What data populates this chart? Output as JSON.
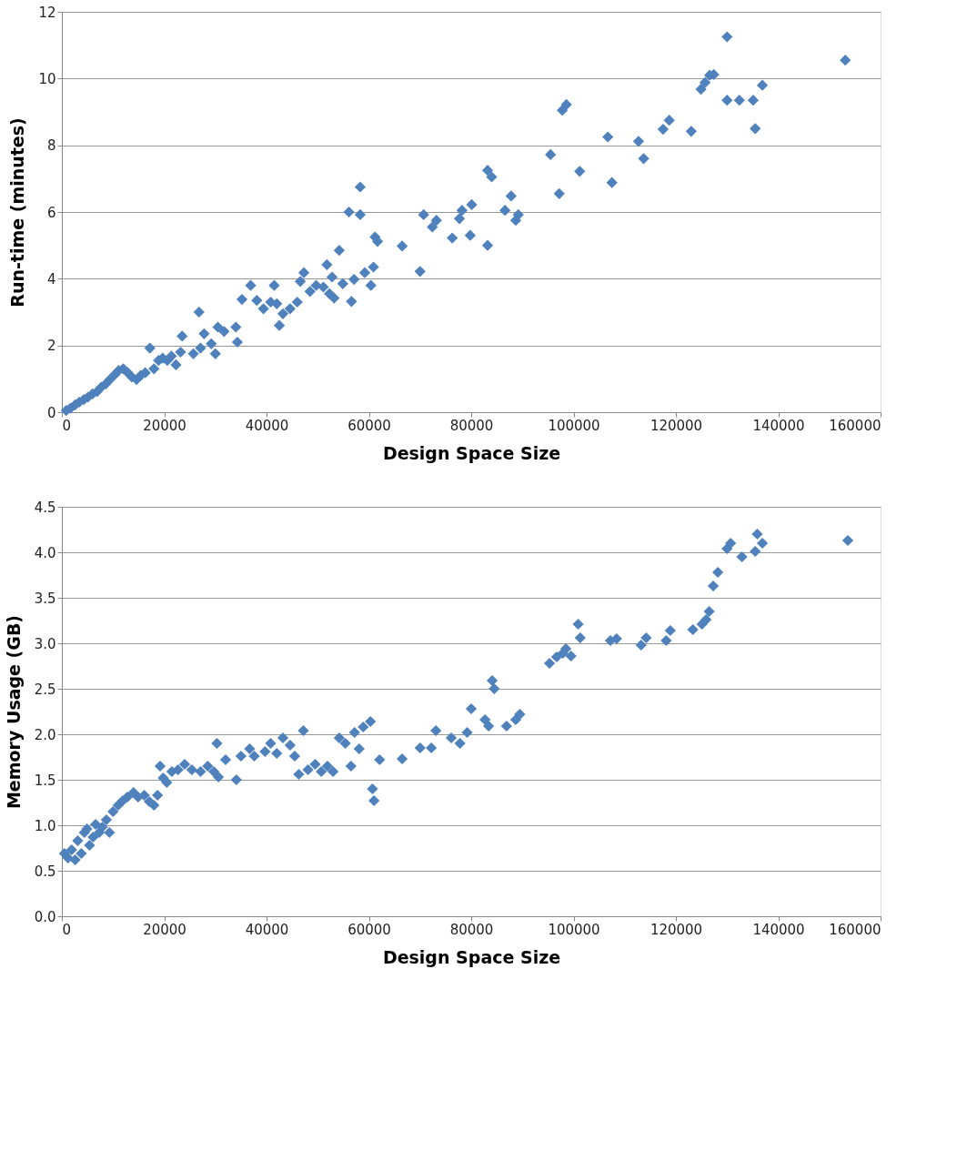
{
  "chart_data": [
    {
      "type": "scatter",
      "xlabel": "Design Space Size",
      "ylabel": "Run-time (minutes)",
      "xlim": [
        0,
        160000
      ],
      "xticks": [
        0,
        20000,
        40000,
        60000,
        80000,
        100000,
        120000,
        140000,
        160000
      ],
      "ylim": [
        0,
        12
      ],
      "yticks": [
        0,
        2,
        4,
        6,
        8,
        10,
        12
      ],
      "grid": "y",
      "marker": "diamond",
      "series": [
        {
          "color": "#4f81bd",
          "x": [
            860,
            1700,
            2600,
            3400,
            4300,
            5100,
            6000,
            6900,
            7700,
            8600,
            9400,
            10300,
            11100,
            12000,
            12900,
            13700,
            14600,
            15400,
            16300,
            17200,
            18000,
            18900,
            19700,
            20600,
            21400,
            22300,
            23200,
            23500,
            25700,
            26800,
            27100,
            27800,
            29200,
            30000,
            30500,
            31700,
            34000,
            34300,
            35200,
            36900,
            38100,
            39400,
            40800,
            41500,
            42000,
            42500,
            43200,
            44600,
            46000,
            46600,
            47300,
            48500,
            49700,
            51100,
            51800,
            52300,
            52800,
            53200,
            54200,
            54900,
            56100,
            56600,
            57100,
            58300,
            58300,
            59200,
            60400,
            60900,
            61200,
            61700,
            66500,
            70000,
            70700,
            72400,
            73200,
            76300,
            77700,
            78200,
            79800,
            80100,
            83200,
            83200,
            84000,
            86600,
            87800,
            88700,
            89200,
            95500,
            97200,
            97800,
            98600,
            101200,
            106700,
            107500,
            112700,
            113700,
            117500,
            118700,
            123000,
            124900,
            125700,
            126600,
            127400,
            130000,
            130000,
            132400,
            135100,
            135500,
            136900,
            153100
          ],
          "values": [
            0.05,
            0.12,
            0.22,
            0.3,
            0.38,
            0.45,
            0.55,
            0.62,
            0.75,
            0.85,
            0.98,
            1.12,
            1.25,
            1.3,
            1.18,
            1.05,
            0.98,
            1.1,
            1.18,
            1.92,
            1.3,
            1.55,
            1.62,
            1.55,
            1.68,
            1.42,
            1.8,
            2.28,
            1.75,
            3.0,
            1.92,
            2.35,
            2.05,
            1.75,
            2.55,
            2.42,
            2.55,
            2.1,
            3.38,
            3.8,
            3.35,
            3.1,
            3.3,
            3.8,
            3.25,
            2.6,
            2.95,
            3.1,
            3.3,
            3.92,
            4.18,
            3.62,
            3.8,
            3.75,
            4.42,
            3.55,
            4.05,
            3.42,
            4.85,
            3.85,
            6.0,
            3.32,
            3.98,
            6.75,
            5.92,
            4.18,
            3.8,
            4.35,
            5.25,
            5.12,
            4.98,
            4.22,
            5.92,
            5.55,
            5.75,
            5.22,
            5.8,
            6.05,
            5.3,
            6.22,
            5.0,
            7.25,
            7.05,
            6.05,
            6.48,
            5.75,
            5.92,
            7.72,
            6.55,
            9.05,
            9.22,
            7.22,
            8.25,
            6.88,
            8.12,
            7.6,
            8.48,
            8.75,
            8.42,
            9.68,
            9.88,
            10.1,
            10.12,
            11.25,
            9.35,
            9.35,
            9.35,
            8.5,
            9.8,
            10.55
          ]
        }
      ]
    },
    {
      "type": "scatter",
      "xlabel": "Design Space Size",
      "ylabel": "Memory Usage (GB)",
      "xlim": [
        0,
        160000
      ],
      "xticks": [
        0,
        20000,
        40000,
        60000,
        80000,
        100000,
        120000,
        140000,
        160000
      ],
      "ylim": [
        0,
        4.5
      ],
      "yticks": [
        {
          "value": 0,
          "label": "0.0"
        },
        0.5,
        {
          "value": 1,
          "label": "1.0"
        },
        1.5,
        {
          "value": 2,
          "label": "2.0"
        },
        2.5,
        {
          "value": 3,
          "label": "3.0"
        },
        3.5,
        {
          "value": 4,
          "label": "4.0"
        },
        4.5
      ],
      "grid": "y",
      "marker": "diamond",
      "series": [
        {
          "color": "#4f81bd",
          "x": [
            500,
            1200,
            1900,
            2600,
            3100,
            3800,
            4400,
            4900,
            5400,
            6100,
            6600,
            7300,
            7900,
            8700,
            9300,
            10000,
            11000,
            11900,
            12800,
            14000,
            14900,
            16100,
            17100,
            18000,
            18700,
            19200,
            19800,
            20500,
            21500,
            22700,
            24000,
            25400,
            27100,
            28500,
            29700,
            30300,
            30600,
            32000,
            34100,
            35000,
            36700,
            37600,
            39700,
            40800,
            42000,
            43200,
            44600,
            45500,
            46300,
            47200,
            48100,
            49500,
            50700,
            51900,
            53000,
            54200,
            55400,
            56500,
            57200,
            58100,
            58900,
            60300,
            60700,
            61000,
            62100,
            66500,
            70000,
            72200,
            73100,
            76100,
            77800,
            79200,
            80000,
            82700,
            83400,
            84100,
            84500,
            86900,
            88700,
            89500,
            95300,
            96700,
            97900,
            98500,
            99500,
            100900,
            101300,
            107200,
            108400,
            113200,
            114200,
            118100,
            118900,
            123300,
            125100,
            125900,
            126500,
            127300,
            128200,
            130000,
            130700,
            132900,
            135500,
            135900,
            136900,
            153600
          ],
          "values": [
            0.69,
            0.64,
            0.73,
            0.62,
            0.83,
            0.69,
            0.92,
            0.96,
            0.78,
            0.87,
            1.01,
            0.92,
            0.98,
            1.06,
            0.92,
            1.15,
            1.22,
            1.27,
            1.31,
            1.36,
            1.31,
            1.33,
            1.26,
            1.22,
            1.33,
            1.65,
            1.52,
            1.47,
            1.59,
            1.61,
            1.67,
            1.61,
            1.59,
            1.65,
            1.59,
            1.9,
            1.53,
            1.72,
            1.5,
            1.76,
            1.84,
            1.76,
            1.81,
            1.9,
            1.79,
            1.96,
            1.88,
            1.76,
            1.56,
            2.04,
            1.61,
            1.67,
            1.59,
            1.65,
            1.59,
            1.96,
            1.9,
            1.65,
            2.02,
            1.84,
            2.08,
            2.14,
            1.4,
            1.27,
            1.72,
            1.73,
            1.85,
            1.85,
            2.04,
            1.96,
            1.9,
            2.02,
            2.28,
            2.16,
            2.09,
            2.59,
            2.5,
            2.09,
            2.16,
            2.22,
            2.78,
            2.85,
            2.89,
            2.94,
            2.86,
            3.21,
            3.06,
            3.03,
            3.05,
            2.98,
            3.06,
            3.03,
            3.14,
            3.15,
            3.21,
            3.26,
            3.35,
            3.63,
            3.78,
            4.04,
            4.1,
            3.95,
            4.01,
            4.2,
            4.1,
            4.13
          ]
        }
      ]
    }
  ]
}
